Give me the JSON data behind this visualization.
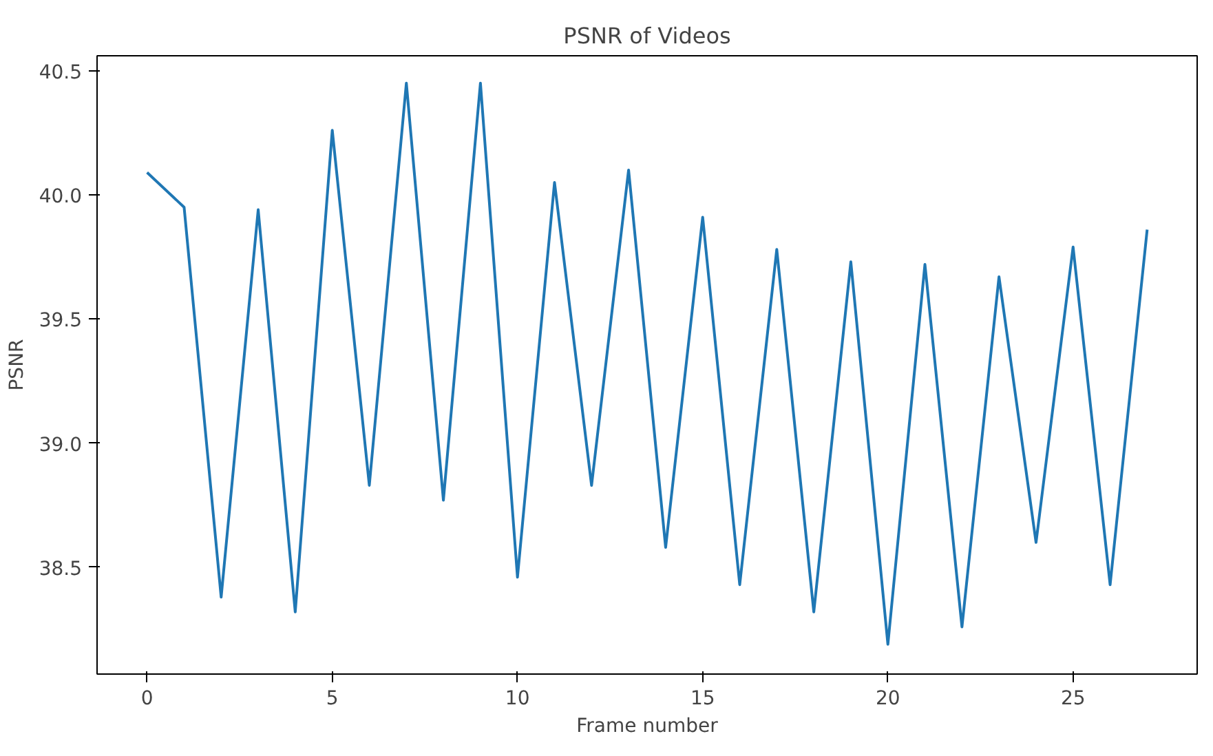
{
  "chart_data": {
    "type": "line",
    "title": "PSNR of Videos",
    "xlabel": "Frame number",
    "ylabel": "PSNR",
    "x": [
      0,
      1,
      2,
      3,
      4,
      5,
      6,
      7,
      8,
      9,
      10,
      11,
      12,
      13,
      14,
      15,
      16,
      17,
      18,
      19,
      20,
      21,
      22,
      23,
      24,
      25,
      26,
      27
    ],
    "series": [
      {
        "color": "#1f77b4",
        "values": [
          40.09,
          39.95,
          38.38,
          39.94,
          38.32,
          40.26,
          38.83,
          40.45,
          38.77,
          40.45,
          38.46,
          40.05,
          38.83,
          40.1,
          38.58,
          39.91,
          38.43,
          39.78,
          38.32,
          39.73,
          38.19,
          39.72,
          38.26,
          39.67,
          38.6,
          39.79,
          38.43,
          39.86
        ]
      }
    ],
    "xlim": [
      -1.35,
      28.35
    ],
    "ylim": [
      38.07,
      40.56
    ],
    "xticks": [
      0,
      5,
      10,
      15,
      20,
      25
    ],
    "yticks": [
      {
        "value": 38.5,
        "label": "38.5"
      },
      {
        "value": 39,
        "label": "39.0"
      },
      {
        "value": 39.5,
        "label": "39.5"
      },
      {
        "value": 40,
        "label": "40.0"
      },
      {
        "value": 40.5,
        "label": "40.5"
      }
    ],
    "grid": false,
    "marker": "none",
    "line_style": "solid"
  }
}
